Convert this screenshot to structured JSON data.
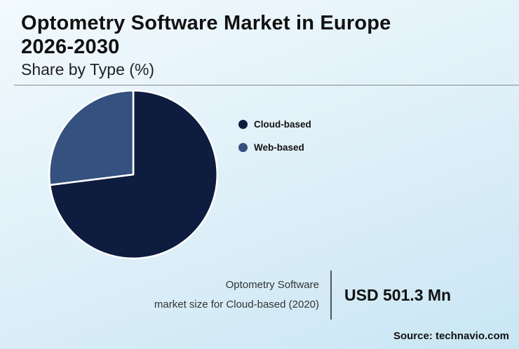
{
  "header": {
    "title_line1": "Optometry Software Market in Europe",
    "title_line2": "2026-2030",
    "subtitle": "Share by Type (%)"
  },
  "chart_data": {
    "type": "pie",
    "title": "Optometry Software Market in Europe 2026-2030",
    "subtitle": "Share by Type (%)",
    "slices": [
      {
        "label": "Cloud-based",
        "value": 73,
        "color": "#0d1c3f"
      },
      {
        "label": "Web-based",
        "value": 27,
        "color": "#34517f"
      }
    ],
    "start_angle_deg": -90,
    "direction": "clockwise",
    "legend_position": "right",
    "slice_border_color": "#ffffff"
  },
  "footer": {
    "caption_line1": "Optometry Software",
    "caption_line2": "market size for Cloud-based (2020)",
    "value": "USD 501.3 Mn",
    "source": "Source: technavio.com"
  }
}
